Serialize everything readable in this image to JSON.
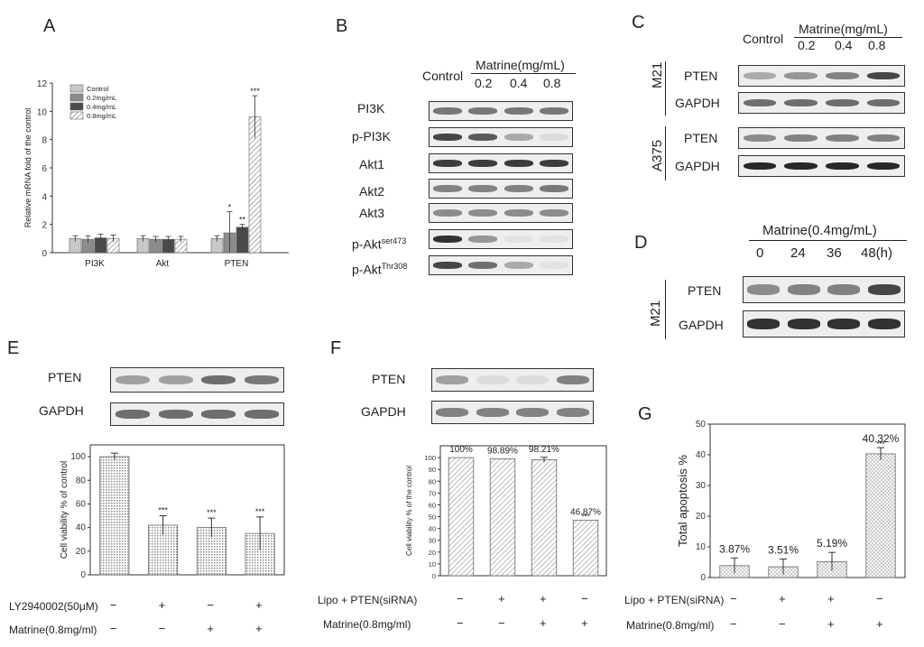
{
  "panels": {
    "A": {
      "letter": "A",
      "ylabel": "Relative mRNA fold of the control",
      "legend": [
        "Control",
        "0.2mg/mL",
        "0.4mg/mL",
        "0.8mg/mL"
      ],
      "yticks": [
        "0",
        "2",
        "4",
        "6",
        "8",
        "10",
        "12"
      ],
      "significance": [
        "*",
        "**",
        "***"
      ]
    },
    "B": {
      "letter": "B",
      "control_label": "Control",
      "treatment_label": "Matrine(mg/mL)",
      "doses": [
        "0.2",
        "0.4",
        "0.8"
      ],
      "rows": [
        "PI3K",
        "p-PI3K",
        "Akt1",
        "Akt2",
        "Akt3",
        "p-Akt",
        "p-Akt"
      ],
      "sup_ser": "ser473",
      "sup_thr": "Thr308"
    },
    "C": {
      "letter": "C",
      "control_label": "Control",
      "treatment_label": "Matrine(mg/mL)",
      "doses": [
        "0.2",
        "0.4",
        "0.8"
      ],
      "cell_lines": [
        "M21",
        "A375"
      ],
      "rows": [
        "PTEN",
        "GAPDH",
        "PTEN",
        "GAPDH"
      ]
    },
    "D": {
      "letter": "D",
      "treatment_label": "Matrine(0.4mg/mL)",
      "times": [
        "0",
        "24",
        "36",
        "48(h)"
      ],
      "cell_line": "M21",
      "rows": [
        "PTEN",
        "GAPDH"
      ]
    },
    "E": {
      "letter": "E",
      "rows": [
        "PTEN",
        "GAPDH"
      ],
      "ylabel": "Cell viability % of control",
      "yticks": [
        "0",
        "20",
        "40",
        "60",
        "80",
        "100"
      ],
      "sig": "***",
      "cond1_label": "LY2940002(50μM)",
      "cond1": [
        "−",
        "+",
        "−",
        "+"
      ],
      "cond2_label": "Matrine(0.8mg/ml)",
      "cond2": [
        "−",
        "−",
        "+",
        "+"
      ]
    },
    "F": {
      "letter": "F",
      "rows": [
        "PTEN",
        "GAPDH"
      ],
      "ylabel": "Cell viability % of the control",
      "yticks": [
        "0",
        "10",
        "20",
        "30",
        "40",
        "50",
        "60",
        "70",
        "80",
        "90",
        "100"
      ],
      "value_labels": [
        "100%",
        "98.89%",
        "98.21%",
        "46.87%"
      ],
      "sig": "***",
      "cond1_label": "Lipo + PTEN(siRNA)",
      "cond1": [
        "−",
        "+",
        "+",
        "−"
      ],
      "cond2_label": "Matrine(0.8mg/ml)",
      "cond2": [
        "−",
        "−",
        "+",
        "+"
      ]
    },
    "G": {
      "letter": "G",
      "ylabel": "Total apoptosis %",
      "yticks": [
        "0",
        "10",
        "20",
        "30",
        "40",
        "50"
      ],
      "value_labels": [
        "3.87%",
        "3.51%",
        "5.19%",
        "40.32%"
      ],
      "sig": "***",
      "cond1_label": "Lipo + PTEN(siRNA)",
      "cond1": [
        "−",
        "+",
        "+",
        "−"
      ],
      "cond2_label": "Matrine(0.8mg/ml)",
      "cond2": [
        "−",
        "−",
        "+",
        "+"
      ]
    }
  },
  "chart_data": [
    {
      "id": "A",
      "type": "bar",
      "ylabel": "Relative mRNA fold of the control",
      "ylim": [
        0,
        12
      ],
      "categories": [
        "PI3K",
        "Akt",
        "PTEN"
      ],
      "series": [
        {
          "name": "Control",
          "values": [
            1.0,
            1.0,
            1.0
          ],
          "errors": [
            0.2,
            0.2,
            0.2
          ]
        },
        {
          "name": "0.2mg/mL",
          "values": [
            0.95,
            0.95,
            1.4
          ],
          "errors": [
            0.25,
            0.2,
            1.5
          ]
        },
        {
          "name": "0.4mg/mL",
          "values": [
            1.05,
            0.95,
            1.8
          ],
          "errors": [
            0.25,
            0.2,
            0.2
          ]
        },
        {
          "name": "0.8mg/mL",
          "values": [
            1.0,
            0.95,
            9.6
          ],
          "errors": [
            0.25,
            0.2,
            1.5
          ]
        }
      ]
    },
    {
      "id": "E",
      "type": "bar",
      "ylabel": "Cell viability % of control",
      "ylim": [
        0,
        110
      ],
      "values": [
        100,
        42,
        40,
        35
      ],
      "errors": [
        3,
        8,
        8,
        14
      ]
    },
    {
      "id": "F",
      "type": "bar",
      "ylabel": "Cell viability % of the control",
      "ylim": [
        0,
        110
      ],
      "values": [
        100,
        98.89,
        98.21,
        46.87
      ],
      "errors": [
        0,
        0,
        2,
        0
      ]
    },
    {
      "id": "G",
      "type": "bar",
      "ylabel": "Total apoptosis %",
      "ylim": [
        0,
        50
      ],
      "values": [
        3.87,
        3.51,
        5.19,
        40.32
      ],
      "errors": [
        2.5,
        2.5,
        3,
        2
      ]
    }
  ]
}
